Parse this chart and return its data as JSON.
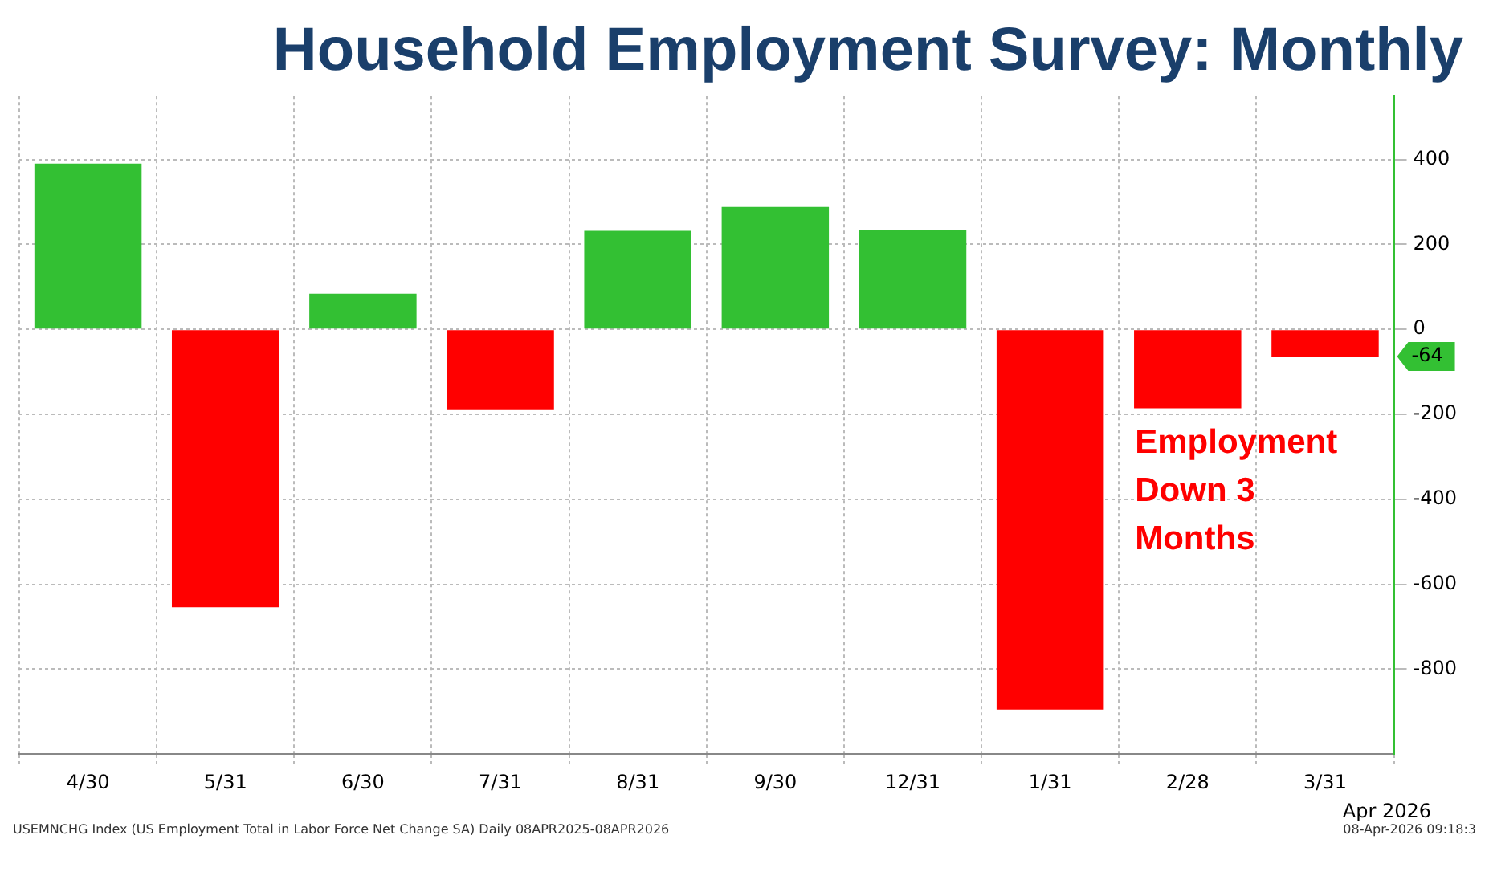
{
  "chart_data": {
    "type": "bar",
    "title": "Household Employment Survey: Monthly",
    "categories": [
      "4/30",
      "5/31",
      "6/30",
      "7/31",
      "8/31",
      "9/30",
      "12/31",
      "1/31",
      "2/28",
      "3/31"
    ],
    "values": [
      390,
      -654,
      84,
      -188,
      232,
      288,
      234,
      -895,
      -186,
      -64
    ],
    "colors": [
      "#33c033",
      "#ff0000",
      "#33c033",
      "#ff0000",
      "#33c033",
      "#33c033",
      "#33c033",
      "#ff0000",
      "#ff0000",
      "#ff0000"
    ],
    "ylim": [
      -1000,
      550
    ],
    "yticks": [
      -800,
      -600,
      -400,
      -200,
      0,
      200,
      400
    ],
    "grid": true,
    "legend": false,
    "annotations": [
      "Employment Down 3 Months",
      "-64",
      "Apr 2026",
      "USEMNCHG Index (US Employment Total in Labor Force Net Change SA) Daily 08APR2025-08APR2026",
      "08-Apr-2026 09:18:3"
    ]
  }
}
